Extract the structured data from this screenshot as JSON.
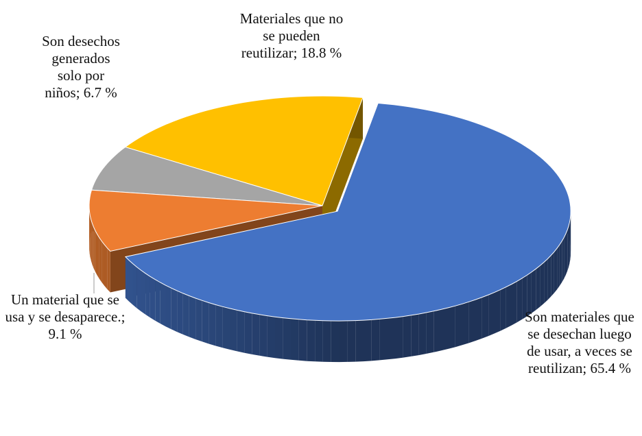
{
  "chart_data": {
    "type": "pie3d",
    "categories": [
      "Son materiales que se desechan luego de usar, a veces se reutilizan",
      "Un material que se usa y se desaparece.",
      "Son desechos generados solo por niños",
      "Materiales que no se pueden reutilizar"
    ],
    "values": [
      65.4,
      9.1,
      6.7,
      18.8
    ],
    "value_labels": [
      "65.4 %",
      "9.1 %",
      "6.7 %",
      "18.8 %"
    ],
    "label_separator": "; ",
    "colors": [
      "#4472c4",
      "#ed7d31",
      "#a5a5a5",
      "#ffc000"
    ],
    "exploded": [
      true,
      false,
      false,
      false
    ]
  }
}
